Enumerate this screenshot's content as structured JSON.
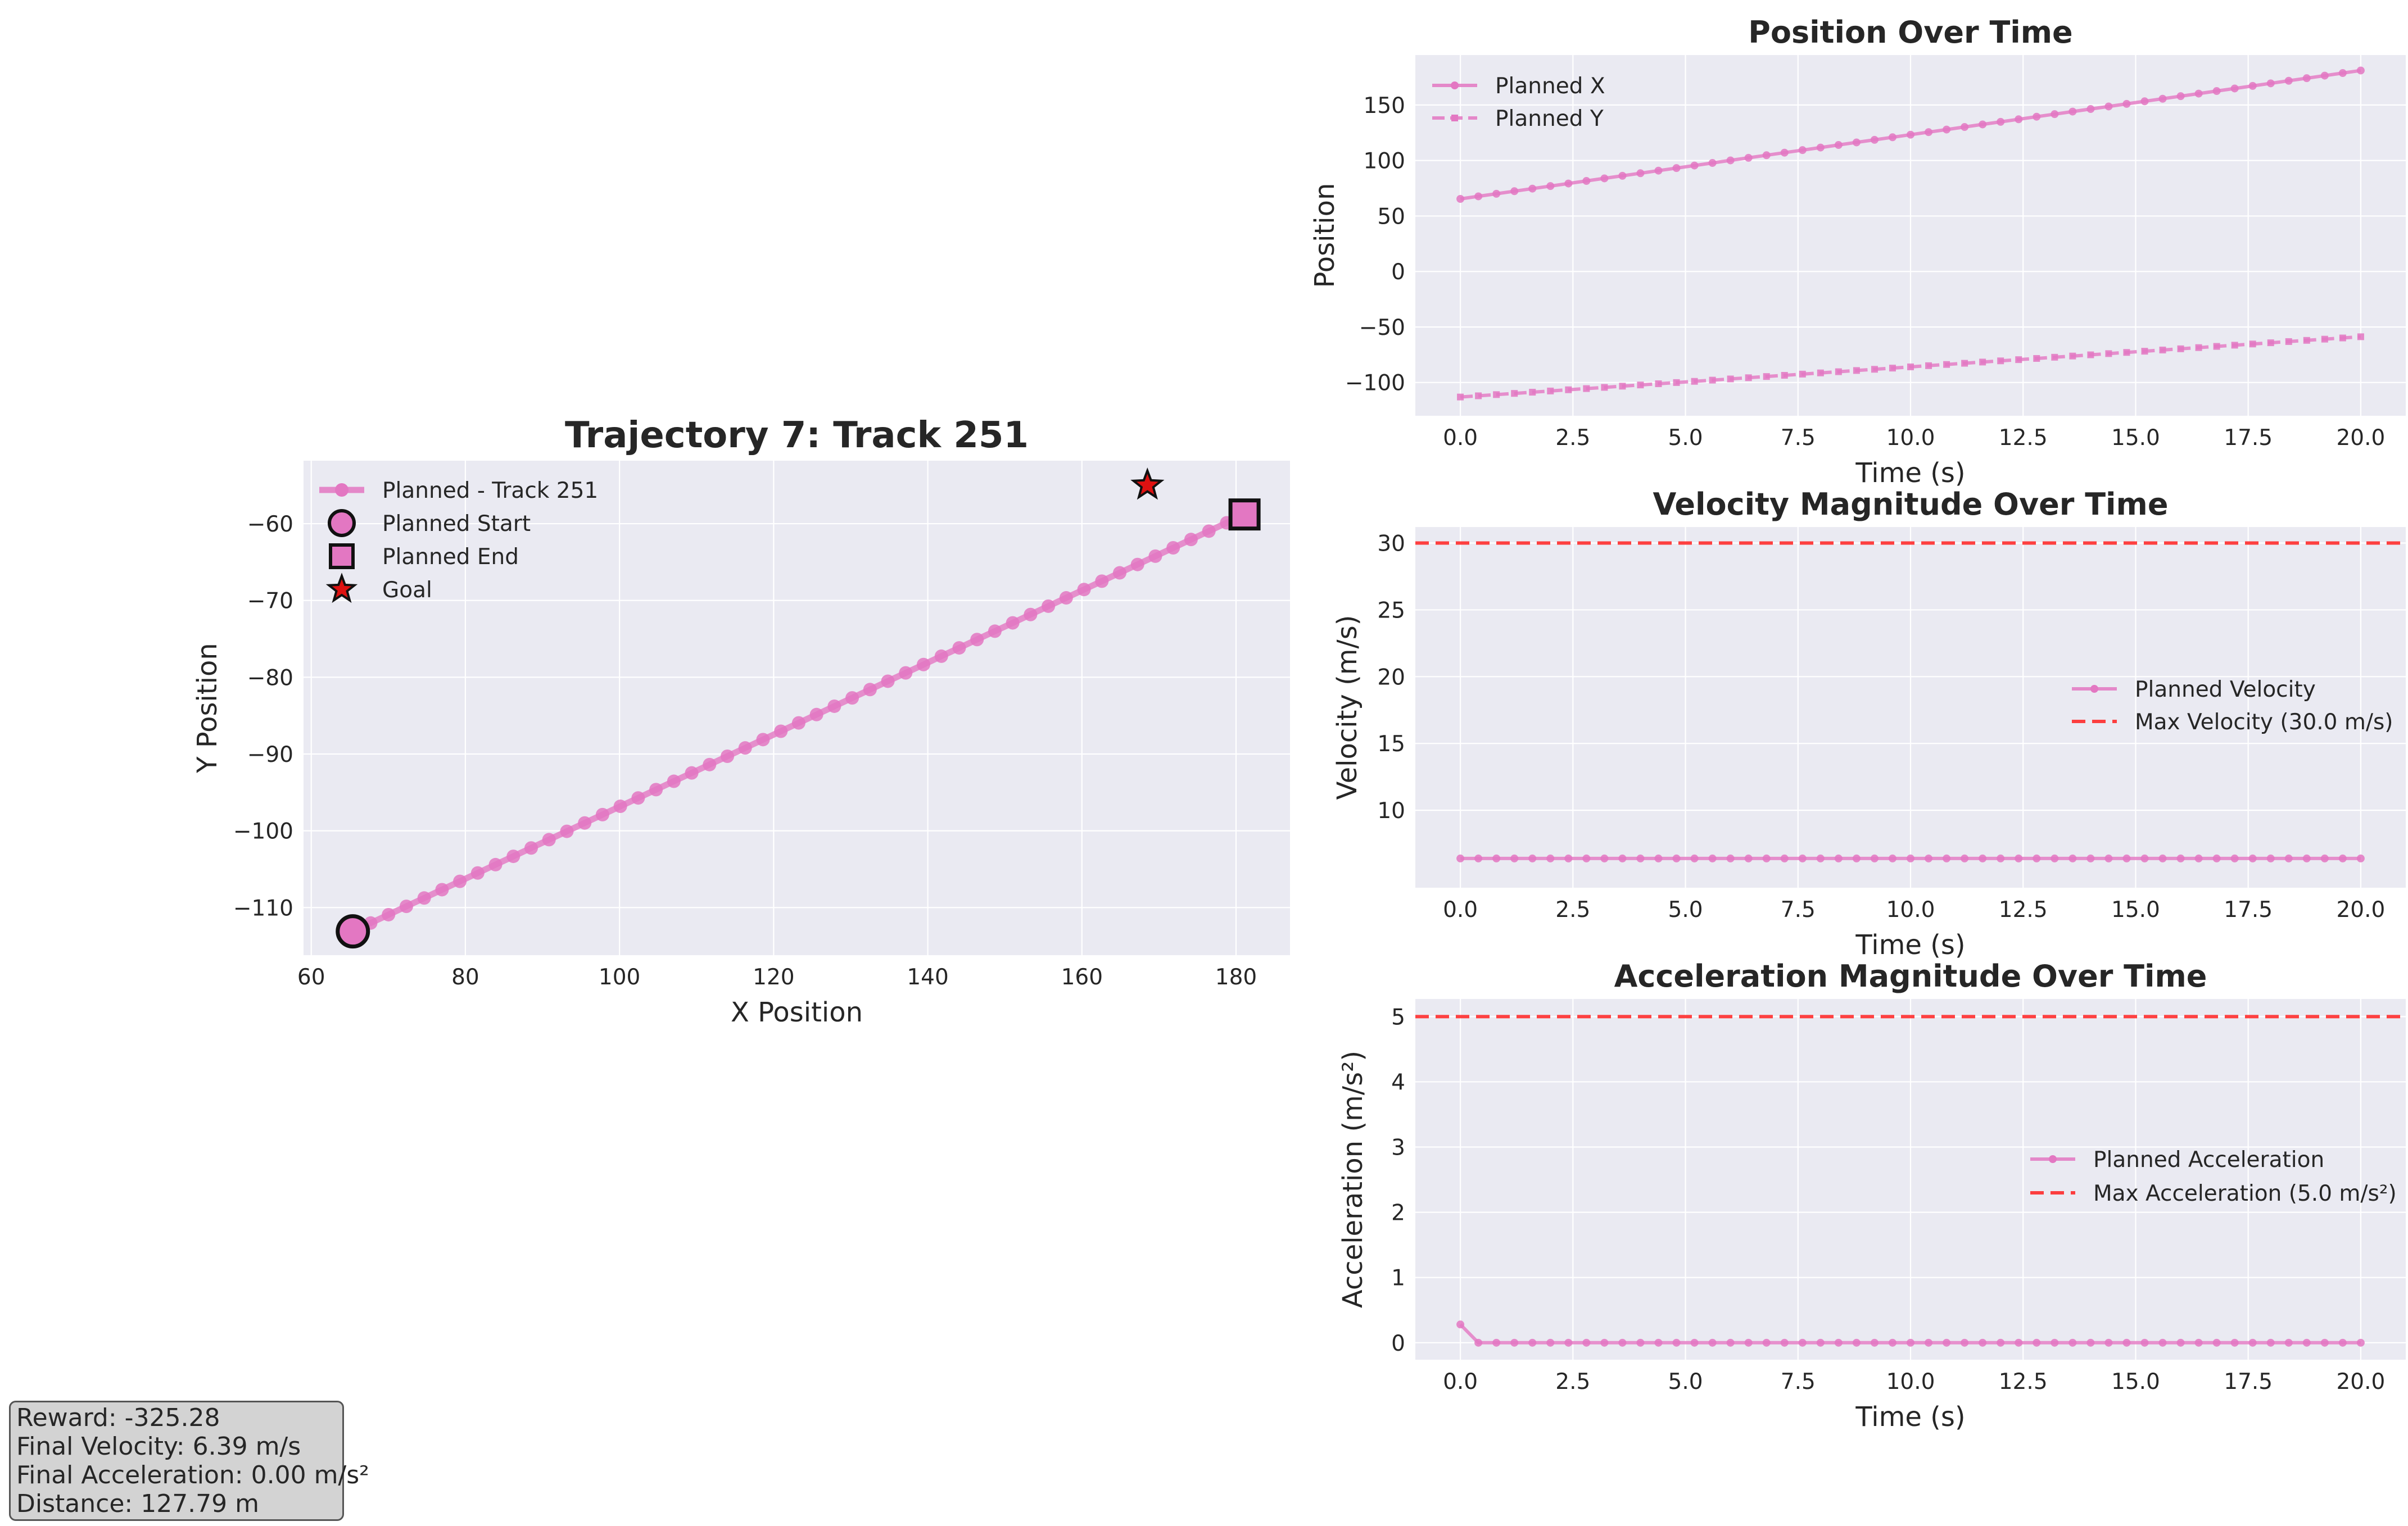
{
  "palette": {
    "track": "#e377c2",
    "limit": "#ff2020",
    "goal": "#dd1111",
    "edge": "#111111"
  },
  "chart_data": [
    {
      "id": "trajectory",
      "type": "line",
      "title": "Trajectory 7: Track 251",
      "xlabel": "X Position",
      "ylabel": "Y Position",
      "xlim": [
        59,
        187
      ],
      "ylim": [
        -116.2,
        -51.8
      ],
      "xticks": [
        60,
        80,
        100,
        120,
        140,
        160,
        180
      ],
      "yticks": [
        -110,
        -100,
        -90,
        -80,
        -70,
        -60
      ],
      "grid": true,
      "legend_position": "upper-left",
      "series": [
        {
          "name": "Planned - Track 251",
          "x_start": 65.4,
          "x_end": 181.1,
          "y_start": -113.1,
          "y_end": -58.8,
          "points": 51
        }
      ],
      "markers": [
        {
          "name": "Planned Start",
          "x": 65.4,
          "y": -113.1,
          "shape": "circle"
        },
        {
          "name": "Planned End",
          "x": 181.1,
          "y": -58.8,
          "shape": "square"
        },
        {
          "name": "Goal",
          "x": 168.5,
          "y": -55.0,
          "shape": "star"
        }
      ]
    },
    {
      "id": "position",
      "type": "line",
      "title": "Position Over Time",
      "xlabel": "Time (s)",
      "ylabel": "Position",
      "xlim": [
        -1.0,
        21.0
      ],
      "ylim": [
        -130,
        195
      ],
      "xticks": [
        0.0,
        2.5,
        5.0,
        7.5,
        10.0,
        12.5,
        15.0,
        17.5,
        20.0
      ],
      "yticks": [
        -100,
        -50,
        0,
        50,
        100,
        150
      ],
      "grid": true,
      "legend_position": "upper-left",
      "series": [
        {
          "name": "Planned X",
          "t_start": 0.0,
          "t_end": 20.0,
          "v_start": 65.4,
          "v_end": 181.1,
          "points": 51,
          "style": "solid"
        },
        {
          "name": "Planned Y",
          "t_start": 0.0,
          "t_end": 20.0,
          "v_start": -113.1,
          "v_end": -58.8,
          "points": 51,
          "style": "dashed"
        }
      ]
    },
    {
      "id": "velocity",
      "type": "line",
      "title": "Velocity Magnitude Over Time",
      "xlabel": "Time (s)",
      "ylabel": "Velocity (m/s)",
      "xlim": [
        -1.0,
        21.0
      ],
      "ylim": [
        4.2,
        31.2
      ],
      "xticks": [
        0.0,
        2.5,
        5.0,
        7.5,
        10.0,
        12.5,
        15.0,
        17.5,
        20.0
      ],
      "yticks": [
        10,
        15,
        20,
        25,
        30
      ],
      "grid": true,
      "legend_position": "center-right",
      "series": [
        {
          "name": "Planned Velocity",
          "t_start": 0.0,
          "t_end": 20.0,
          "v_start": 6.39,
          "v_end": 6.39,
          "points": 51,
          "style": "solid"
        }
      ],
      "hlines": [
        {
          "name": "Max Velocity (30.0 m/s)",
          "y": 30.0
        }
      ]
    },
    {
      "id": "acceleration",
      "type": "line",
      "title": "Acceleration Magnitude Over Time",
      "xlabel": "Time (s)",
      "ylabel": "Acceleration (m/s²)",
      "xlim": [
        -1.0,
        21.0
      ],
      "ylim": [
        -0.26,
        5.27
      ],
      "xticks": [
        0.0,
        2.5,
        5.0,
        7.5,
        10.0,
        12.5,
        15.0,
        17.5,
        20.0
      ],
      "yticks": [
        0,
        1,
        2,
        3,
        4,
        5
      ],
      "grid": true,
      "legend_position": "center-right",
      "series": [
        {
          "name": "Planned Acceleration",
          "t_start": 0.0,
          "t_end": 20.0,
          "first_value": 0.28,
          "rest_value": 0.0,
          "points": 51,
          "style": "solid"
        }
      ],
      "hlines": [
        {
          "name": "Max Acceleration (5.0 m/s²)",
          "y": 5.0
        }
      ]
    }
  ],
  "info": {
    "reward": "Reward: -325.28",
    "final_velocity": "Final Velocity: 6.39 m/s",
    "final_acceleration": "Final Acceleration: 0.00 m/s²",
    "distance": "Distance: 127.79 m"
  }
}
